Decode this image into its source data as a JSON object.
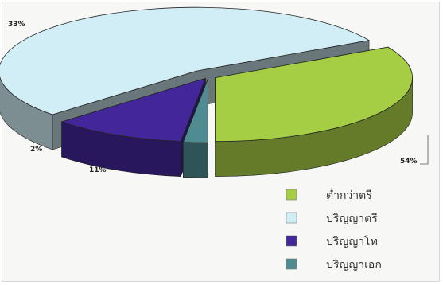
{
  "chart_data": {
    "type": "pie",
    "style": "3d-exploded",
    "title": "",
    "legend_position": "bottom-right",
    "slices": [
      {
        "label": "ต่ำกว่าตรี",
        "value": 33,
        "value_label": "33%",
        "color": "#a6ce45"
      },
      {
        "label": "ปริญญาตรี",
        "value": 54,
        "value_label": "54%",
        "color": "#d1edf5"
      },
      {
        "label": "ปริญญาโท",
        "value": 11,
        "value_label": "11%",
        "color": "#43279a"
      },
      {
        "label": "ปริญญาเอก",
        "value": 2,
        "value_label": "2%",
        "color": "#4f8c92"
      }
    ]
  }
}
